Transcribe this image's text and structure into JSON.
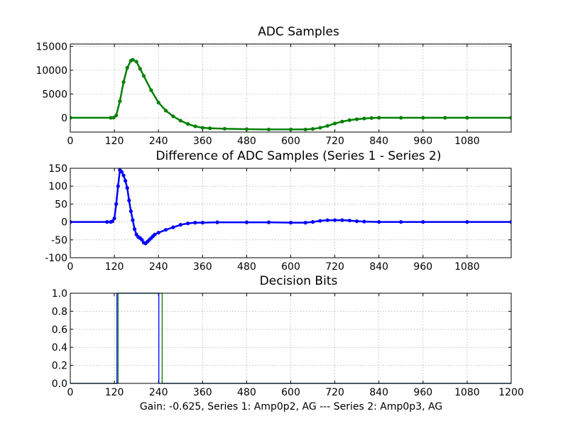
{
  "caption": "Gain: -0.625, Series 1: Amp0p2, AG --- Series 2: Amp0p3, AG",
  "chart_data": [
    {
      "type": "line",
      "title": "ADC Samples",
      "xlabel": "",
      "ylabel": "",
      "xlim": [
        0,
        1200
      ],
      "ylim": [
        -3000,
        15500
      ],
      "grid": true,
      "xticks": [
        0,
        120,
        240,
        360,
        480,
        600,
        720,
        840,
        960,
        1080
      ],
      "yticks": [
        0,
        5000,
        10000,
        15000
      ],
      "series": [
        {
          "name": "Series 1",
          "color": "#008000",
          "marker": "dot",
          "x": [
            0,
            110,
            118,
            125,
            135,
            145,
            155,
            165,
            170,
            180,
            190,
            200,
            220,
            240,
            260,
            280,
            300,
            320,
            340,
            360,
            380,
            420,
            480,
            540,
            600,
            640,
            660,
            680,
            700,
            720,
            740,
            760,
            780,
            800,
            820,
            840,
            900,
            960,
            1020,
            1080,
            1200
          ],
          "y": [
            0,
            0,
            30,
            500,
            3500,
            7500,
            10500,
            12000,
            12200,
            11800,
            10300,
            8800,
            5800,
            3200,
            1500,
            300,
            -600,
            -1300,
            -1800,
            -2100,
            -2200,
            -2300,
            -2400,
            -2450,
            -2450,
            -2450,
            -2350,
            -2100,
            -1700,
            -1200,
            -800,
            -500,
            -300,
            -150,
            -50,
            0,
            0,
            0,
            0,
            0,
            0
          ]
        }
      ]
    },
    {
      "type": "line",
      "title": "Difference of ADC Samples (Series 1 - Series 2)",
      "xlabel": "",
      "ylabel": "",
      "xlim": [
        0,
        1200
      ],
      "ylim": [
        -100,
        150
      ],
      "grid": true,
      "xticks": [
        0,
        120,
        240,
        360,
        480,
        600,
        720,
        840,
        960,
        1080
      ],
      "yticks": [
        -100,
        -50,
        0,
        50,
        100,
        150
      ],
      "series": [
        {
          "name": "Series 1 - Series 2",
          "color": "#0000ff",
          "marker": "dot",
          "x": [
            0,
            100,
            110,
            115,
            120,
            125,
            130,
            135,
            140,
            145,
            150,
            155,
            160,
            165,
            170,
            175,
            180,
            185,
            190,
            195,
            200,
            205,
            210,
            215,
            220,
            225,
            230,
            240,
            260,
            280,
            300,
            320,
            340,
            360,
            400,
            480,
            540,
            600,
            640,
            660,
            680,
            700,
            720,
            740,
            760,
            780,
            800,
            840,
            900,
            960,
            1080,
            1200
          ],
          "y": [
            0,
            0,
            0,
            2,
            10,
            50,
            100,
            145,
            140,
            130,
            115,
            95,
            60,
            30,
            5,
            -20,
            -35,
            -42,
            -45,
            -50,
            -58,
            -60,
            -55,
            -50,
            -45,
            -40,
            -35,
            -30,
            -22,
            -15,
            -8,
            -4,
            -2,
            -2,
            -1,
            -1,
            -1,
            -2,
            -2,
            0,
            3,
            5,
            5,
            5,
            4,
            2,
            1,
            0,
            0,
            0,
            0,
            0
          ]
        }
      ]
    },
    {
      "type": "line",
      "title": "Decision Bits",
      "xlabel": "",
      "ylabel": "",
      "xlim": [
        0,
        1200
      ],
      "ylim": [
        0,
        1
      ],
      "grid": true,
      "xticks": [
        0,
        120,
        240,
        360,
        480,
        600,
        720,
        840,
        960,
        1080,
        1200
      ],
      "yticks": [
        0.0,
        0.2,
        0.4,
        0.6,
        0.8,
        1.0
      ],
      "series": [
        {
          "name": "Series 1",
          "color": "#0000ff",
          "x": [
            0,
            127,
            127,
            241,
            241,
            1200
          ],
          "y": [
            0,
            0,
            1,
            1,
            0,
            0
          ]
        },
        {
          "name": "Series 2",
          "color": "#008000",
          "x": [
            0,
            130,
            130,
            250,
            250,
            1200
          ],
          "y": [
            0,
            0,
            1,
            1,
            0,
            0
          ]
        }
      ]
    }
  ]
}
